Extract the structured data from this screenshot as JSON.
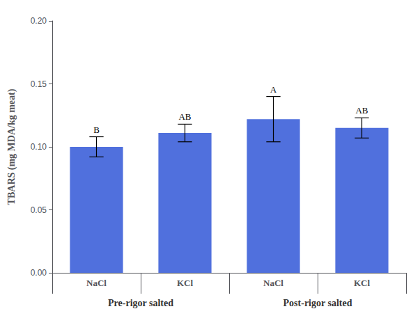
{
  "chart_data": {
    "type": "bar",
    "categories": [
      "NaCl",
      "KCl",
      "NaCl",
      "KCl"
    ],
    "groups": [
      "Pre-rigor salted",
      "Post-rigor salted"
    ],
    "values": [
      0.1,
      0.111,
      0.122,
      0.115
    ],
    "errors": [
      0.008,
      0.007,
      0.018,
      0.008
    ],
    "annotations": [
      "B",
      "AB",
      "A",
      "AB"
    ],
    "ylabel": "TBARS (mg MDA/kg meat)",
    "ylim": [
      0.0,
      0.2
    ],
    "yticks": [
      {
        "value": 0.0,
        "label": "0.00"
      },
      {
        "value": 0.05,
        "label": "0.05"
      },
      {
        "value": 0.1,
        "label": "0.10"
      },
      {
        "value": 0.15,
        "label": "0.15"
      },
      {
        "value": 0.2,
        "label": "0.20"
      }
    ],
    "grid": false
  }
}
